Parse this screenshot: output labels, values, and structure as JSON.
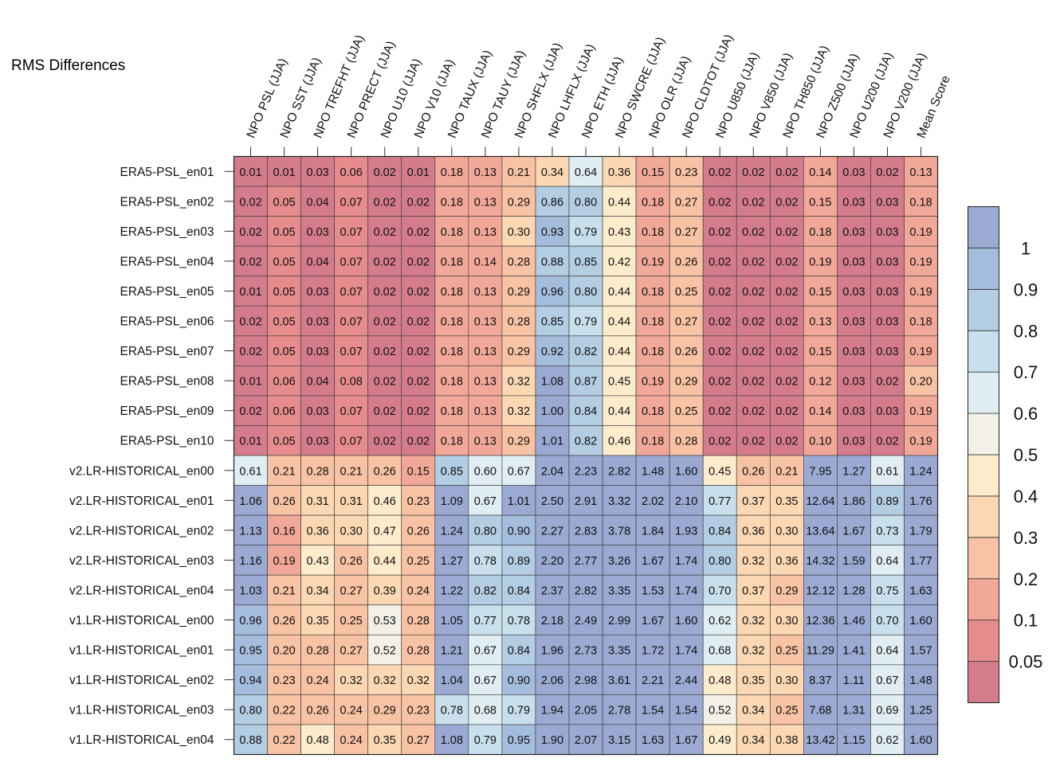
{
  "chart_data": {
    "type": "heatmap",
    "title": "RMS Differences",
    "columns": [
      "NPO PSL (JJA)",
      "NPO SST (JJA)",
      "NPO TREFHT (JJA)",
      "NPO PRECT (JJA)",
      "NPO U10 (JJA)",
      "NPO V10 (JJA)",
      "NPO TAUX (JJA)",
      "NPO TAUY (JJA)",
      "NPO SHFLX (JJA)",
      "NPO LHFLX (JJA)",
      "NPO ETH (JJA)",
      "NPO SWCRE (JJA)",
      "NPO OLR (JJA)",
      "NPO CLDTOT (JJA)",
      "NPO U850 (JJA)",
      "NPO V850 (JJA)",
      "NPO TH850 (JJA)",
      "NPO Z500 (JJA)",
      "NPO U200 (JJA)",
      "NPO V200 (JJA)",
      "Mean Score"
    ],
    "rows": [
      "ERA5-PSL_en01",
      "ERA5-PSL_en02",
      "ERA5-PSL_en03",
      "ERA5-PSL_en04",
      "ERA5-PSL_en05",
      "ERA5-PSL_en06",
      "ERA5-PSL_en07",
      "ERA5-PSL_en08",
      "ERA5-PSL_en09",
      "ERA5-PSL_en10",
      "v2.LR-HISTORICAL_en00",
      "v2.LR-HISTORICAL_en01",
      "v2.LR-HISTORICAL_en02",
      "v2.LR-HISTORICAL_en03",
      "v2.LR-HISTORICAL_en04",
      "v1.LR-HISTORICAL_en00",
      "v1.LR-HISTORICAL_en01",
      "v1.LR-HISTORICAL_en02",
      "v1.LR-HISTORICAL_en03",
      "v1.LR-HISTORICAL_en04"
    ],
    "values": [
      [
        "0.01",
        "0.01",
        "0.03",
        "0.06",
        "0.02",
        "0.01",
        "0.18",
        "0.13",
        "0.21",
        "0.34",
        "0.64",
        "0.36",
        "0.15",
        "0.23",
        "0.02",
        "0.02",
        "0.02",
        "0.14",
        "0.03",
        "0.02",
        "0.13"
      ],
      [
        "0.02",
        "0.05",
        "0.04",
        "0.07",
        "0.02",
        "0.02",
        "0.18",
        "0.13",
        "0.29",
        "0.86",
        "0.80",
        "0.44",
        "0.18",
        "0.27",
        "0.02",
        "0.02",
        "0.02",
        "0.15",
        "0.03",
        "0.03",
        "0.18"
      ],
      [
        "0.02",
        "0.05",
        "0.03",
        "0.07",
        "0.02",
        "0.02",
        "0.18",
        "0.13",
        "0.30",
        "0.93",
        "0.79",
        "0.43",
        "0.18",
        "0.27",
        "0.02",
        "0.02",
        "0.02",
        "0.18",
        "0.03",
        "0.03",
        "0.19"
      ],
      [
        "0.02",
        "0.05",
        "0.04",
        "0.07",
        "0.02",
        "0.02",
        "0.18",
        "0.14",
        "0.28",
        "0.88",
        "0.85",
        "0.42",
        "0.19",
        "0.26",
        "0.02",
        "0.02",
        "0.02",
        "0.19",
        "0.03",
        "0.03",
        "0.19"
      ],
      [
        "0.01",
        "0.05",
        "0.03",
        "0.07",
        "0.02",
        "0.02",
        "0.18",
        "0.13",
        "0.29",
        "0.96",
        "0.80",
        "0.44",
        "0.18",
        "0.25",
        "0.02",
        "0.02",
        "0.02",
        "0.15",
        "0.03",
        "0.03",
        "0.19"
      ],
      [
        "0.02",
        "0.05",
        "0.03",
        "0.07",
        "0.02",
        "0.02",
        "0.18",
        "0.13",
        "0.28",
        "0.85",
        "0.79",
        "0.44",
        "0.18",
        "0.27",
        "0.02",
        "0.02",
        "0.02",
        "0.13",
        "0.03",
        "0.03",
        "0.18"
      ],
      [
        "0.02",
        "0.05",
        "0.03",
        "0.07",
        "0.02",
        "0.02",
        "0.18",
        "0.13",
        "0.29",
        "0.92",
        "0.82",
        "0.44",
        "0.18",
        "0.26",
        "0.02",
        "0.02",
        "0.02",
        "0.15",
        "0.03",
        "0.03",
        "0.19"
      ],
      [
        "0.01",
        "0.06",
        "0.04",
        "0.08",
        "0.02",
        "0.02",
        "0.18",
        "0.13",
        "0.32",
        "1.08",
        "0.87",
        "0.45",
        "0.19",
        "0.29",
        "0.02",
        "0.02",
        "0.02",
        "0.12",
        "0.03",
        "0.02",
        "0.20"
      ],
      [
        "0.02",
        "0.06",
        "0.03",
        "0.07",
        "0.02",
        "0.02",
        "0.18",
        "0.13",
        "0.32",
        "1.00",
        "0.84",
        "0.44",
        "0.18",
        "0.25",
        "0.02",
        "0.02",
        "0.02",
        "0.14",
        "0.03",
        "0.03",
        "0.19"
      ],
      [
        "0.01",
        "0.05",
        "0.03",
        "0.07",
        "0.02",
        "0.02",
        "0.18",
        "0.13",
        "0.29",
        "1.01",
        "0.82",
        "0.46",
        "0.18",
        "0.28",
        "0.02",
        "0.02",
        "0.02",
        "0.10",
        "0.03",
        "0.02",
        "0.19"
      ],
      [
        "0.61",
        "0.21",
        "0.28",
        "0.21",
        "0.26",
        "0.15",
        "0.85",
        "0.60",
        "0.67",
        "2.04",
        "2.23",
        "2.82",
        "1.48",
        "1.60",
        "0.45",
        "0.26",
        "0.21",
        "7.95",
        "1.27",
        "0.61",
        "1.24"
      ],
      [
        "1.06",
        "0.26",
        "0.31",
        "0.31",
        "0.46",
        "0.23",
        "1.09",
        "0.67",
        "1.01",
        "2.50",
        "2.91",
        "3.32",
        "2.02",
        "2.10",
        "0.77",
        "0.37",
        "0.35",
        "12.64",
        "1.86",
        "0.89",
        "1.76"
      ],
      [
        "1.13",
        "0.16",
        "0.36",
        "0.30",
        "0.47",
        "0.26",
        "1.24",
        "0.80",
        "0.90",
        "2.27",
        "2.83",
        "3.78",
        "1.84",
        "1.93",
        "0.84",
        "0.36",
        "0.30",
        "13.64",
        "1.67",
        "0.73",
        "1.79"
      ],
      [
        "1.16",
        "0.19",
        "0.43",
        "0.26",
        "0.44",
        "0.25",
        "1.27",
        "0.78",
        "0.89",
        "2.20",
        "2.77",
        "3.26",
        "1.67",
        "1.74",
        "0.80",
        "0.32",
        "0.36",
        "14.32",
        "1.59",
        "0.64",
        "1.77"
      ],
      [
        "1.03",
        "0.21",
        "0.34",
        "0.27",
        "0.39",
        "0.24",
        "1.22",
        "0.82",
        "0.84",
        "2.37",
        "2.82",
        "3.35",
        "1.53",
        "1.74",
        "0.70",
        "0.37",
        "0.29",
        "12.12",
        "1.28",
        "0.75",
        "1.63"
      ],
      [
        "0.96",
        "0.26",
        "0.35",
        "0.25",
        "0.53",
        "0.28",
        "1.05",
        "0.77",
        "0.78",
        "2.18",
        "2.49",
        "2.99",
        "1.67",
        "1.60",
        "0.62",
        "0.32",
        "0.30",
        "12.36",
        "1.46",
        "0.70",
        "1.60"
      ],
      [
        "0.95",
        "0.20",
        "0.28",
        "0.27",
        "0.52",
        "0.28",
        "1.21",
        "0.67",
        "0.84",
        "1.96",
        "2.73",
        "3.35",
        "1.72",
        "1.74",
        "0.68",
        "0.32",
        "0.25",
        "11.29",
        "1.41",
        "0.64",
        "1.57"
      ],
      [
        "0.94",
        "0.23",
        "0.24",
        "0.32",
        "0.32",
        "0.32",
        "1.04",
        "0.67",
        "0.90",
        "2.06",
        "2.98",
        "3.61",
        "2.21",
        "2.44",
        "0.48",
        "0.35",
        "0.30",
        "8.37",
        "1.11",
        "0.67",
        "1.48"
      ],
      [
        "0.80",
        "0.22",
        "0.26",
        "0.24",
        "0.29",
        "0.23",
        "0.78",
        "0.68",
        "0.79",
        "1.94",
        "2.05",
        "2.78",
        "1.54",
        "1.54",
        "0.52",
        "0.34",
        "0.25",
        "7.68",
        "1.31",
        "0.69",
        "1.25"
      ],
      [
        "0.88",
        "0.22",
        "0.48",
        "0.24",
        "0.35",
        "0.27",
        "1.08",
        "0.79",
        "0.95",
        "1.90",
        "2.07",
        "3.15",
        "1.63",
        "1.67",
        "0.49",
        "0.34",
        "0.38",
        "13.42",
        "1.15",
        "0.62",
        "1.60"
      ]
    ],
    "colorbar": {
      "bounds": [
        0,
        0.05,
        0.1,
        0.2,
        0.3,
        0.4,
        0.5,
        0.6,
        0.7,
        0.8,
        0.9,
        1,
        100
      ],
      "colors": [
        "#d47c8c",
        "#e68c8c",
        "#f2a898",
        "#f8c2a4",
        "#fbd8b3",
        "#fdeccc",
        "#f3f1e7",
        "#e0eef3",
        "#c8e0ec",
        "#b3cde3",
        "#a5bddc",
        "#9aaad2"
      ],
      "tick_labels": [
        "0.05",
        "0.1",
        "0.2",
        "0.3",
        "0.4",
        "0.5",
        "0.6",
        "0.7",
        "0.8",
        "0.9",
        "1"
      ]
    }
  }
}
